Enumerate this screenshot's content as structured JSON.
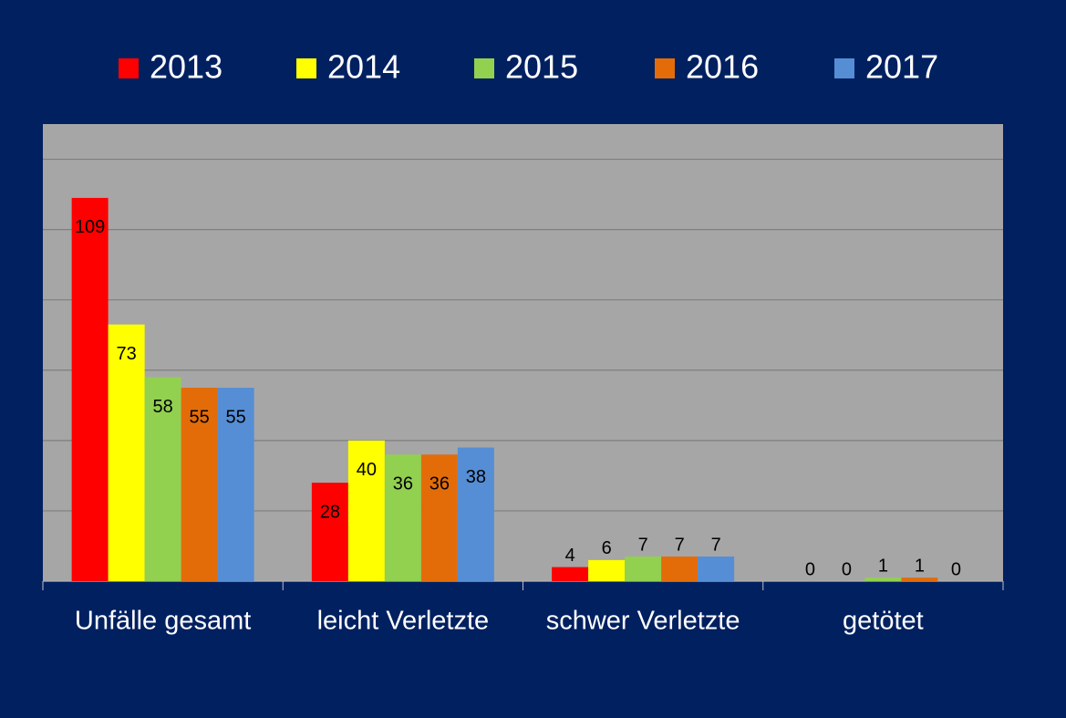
{
  "chart_data": {
    "type": "bar",
    "categories": [
      "Unfälle gesamt",
      "leicht Verletzte",
      "schwer Verletzte",
      "getötet"
    ],
    "series": [
      {
        "name": "2013",
        "color": "#ff0000",
        "values": [
          109,
          28,
          4,
          0
        ]
      },
      {
        "name": "2014",
        "color": "#ffff00",
        "values": [
          73,
          40,
          6,
          0
        ]
      },
      {
        "name": "2015",
        "color": "#92d050",
        "values": [
          58,
          36,
          7,
          1
        ]
      },
      {
        "name": "2016",
        "color": "#e36c09",
        "values": [
          55,
          36,
          7,
          1
        ]
      },
      {
        "name": "2017",
        "color": "#558ed5",
        "values": [
          55,
          38,
          7,
          0
        ]
      }
    ],
    "ylim": [
      0,
      130
    ],
    "yticks": [
      0,
      20,
      40,
      60,
      80,
      100,
      120
    ],
    "grid": true,
    "legend": "top"
  }
}
